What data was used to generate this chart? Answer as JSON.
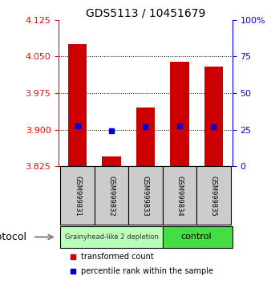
{
  "title": "GDS5113 / 10451679",
  "samples": [
    "GSM999831",
    "GSM999832",
    "GSM999833",
    "GSM999834",
    "GSM999835"
  ],
  "bar_values": [
    4.075,
    3.845,
    3.945,
    4.04,
    4.03
  ],
  "blue_values": [
    3.908,
    3.898,
    3.906,
    3.908,
    3.907
  ],
  "bar_color": "#cc0000",
  "blue_color": "#0000cc",
  "ylim_left": [
    3.825,
    4.125
  ],
  "yticks_left": [
    3.825,
    3.9,
    3.975,
    4.05,
    4.125
  ],
  "ylim_right": [
    0,
    100
  ],
  "yticks_right": [
    0,
    25,
    50,
    75,
    100
  ],
  "ytick_labels_right": [
    "0",
    "25",
    "50",
    "75",
    "100%"
  ],
  "group1_label": "Grainyhead-like 2 depletion",
  "group1_color": "#bbffbb",
  "group2_label": "control",
  "group2_color": "#44dd44",
  "protocol_label": "protocol",
  "legend_red_label": "transformed count",
  "legend_blue_label": "percentile rank within the sample",
  "bar_width": 0.55,
  "baseline": 3.825,
  "label_bg_color": "#cccccc",
  "title_fontsize": 10,
  "tick_fontsize": 8,
  "sample_fontsize": 6,
  "proto_fontsize": 9,
  "legend_fontsize": 7
}
